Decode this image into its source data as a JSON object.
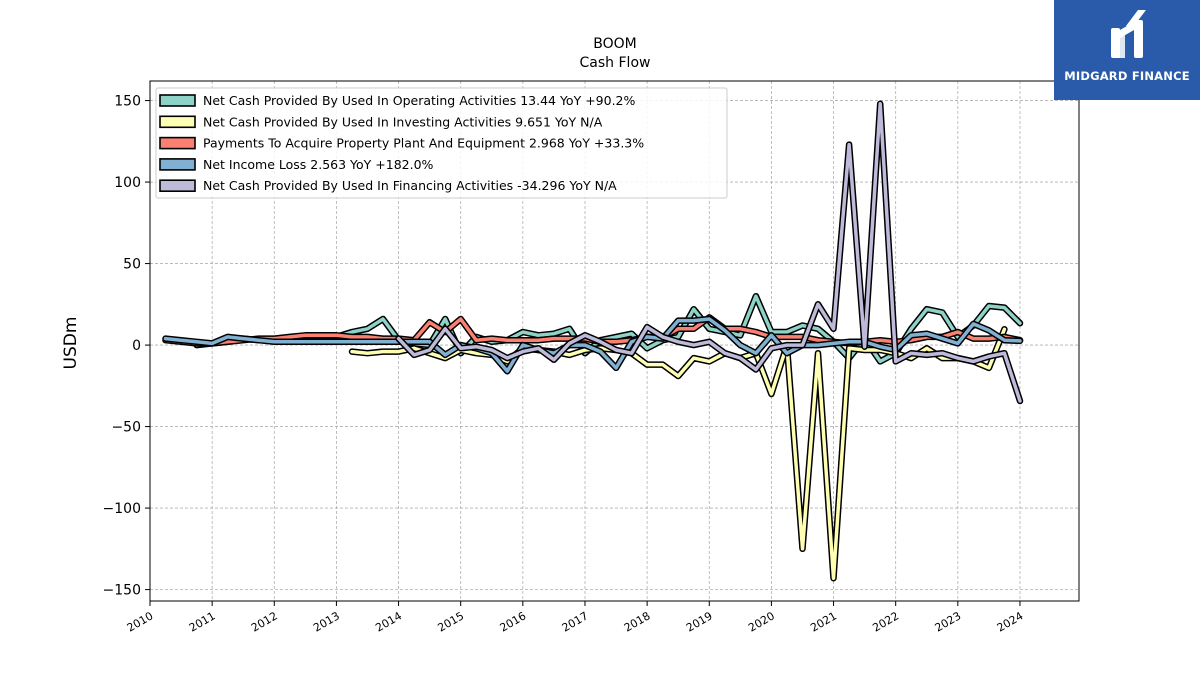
{
  "brand": {
    "name": "MIDGARD FINANCE",
    "bg_color": "#2a5bab"
  },
  "chart_data": {
    "type": "line",
    "title": "BOOM",
    "subtitle": "Cash Flow",
    "ylabel": "USDm",
    "xlabel": "",
    "xlim": [
      2010.0,
      2024.95
    ],
    "ylim": [
      -157,
      162
    ],
    "xticks": [
      2010,
      2011,
      2012,
      2013,
      2014,
      2015,
      2016,
      2017,
      2018,
      2019,
      2020,
      2021,
      2022,
      2023,
      2024
    ],
    "yticks": [
      -150,
      -100,
      -50,
      0,
      50,
      100,
      150
    ],
    "ytick_labels": [
      "−150",
      "−100",
      "−50",
      "0",
      "50",
      "100",
      "150"
    ],
    "grid": true,
    "legend_position": "top-left",
    "series": [
      {
        "name": "Net Cash Provided By Used In Operating Activities",
        "legend": "Net Cash Provided By Used In Operating Activities  13.44 YoY +90.2%",
        "color": "#8dd3c7",
        "points": [
          [
            2010.75,
            0
          ],
          [
            2011.0,
            1
          ],
          [
            2011.25,
            2
          ],
          [
            2011.5,
            4
          ],
          [
            2011.75,
            3
          ],
          [
            2012.0,
            3
          ],
          [
            2012.25,
            4
          ],
          [
            2012.5,
            5
          ],
          [
            2012.75,
            5
          ],
          [
            2013.0,
            5
          ],
          [
            2013.25,
            8
          ],
          [
            2013.5,
            10
          ],
          [
            2013.75,
            16
          ],
          [
            2014.0,
            3
          ],
          [
            2014.25,
            1
          ],
          [
            2014.5,
            0
          ],
          [
            2014.75,
            16
          ],
          [
            2015.0,
            -5
          ],
          [
            2015.25,
            5
          ],
          [
            2015.5,
            2
          ],
          [
            2015.75,
            3
          ],
          [
            2016.0,
            8
          ],
          [
            2016.25,
            6
          ],
          [
            2016.5,
            7
          ],
          [
            2016.75,
            10
          ],
          [
            2017.0,
            -5
          ],
          [
            2017.25,
            3
          ],
          [
            2017.5,
            5
          ],
          [
            2017.75,
            7
          ],
          [
            2018.0,
            -2
          ],
          [
            2018.25,
            3
          ],
          [
            2018.5,
            5
          ],
          [
            2018.75,
            22
          ],
          [
            2019.0,
            10
          ],
          [
            2019.25,
            8
          ],
          [
            2019.5,
            6
          ],
          [
            2019.75,
            30
          ],
          [
            2020.0,
            8
          ],
          [
            2020.25,
            8
          ],
          [
            2020.5,
            12
          ],
          [
            2020.75,
            10
          ],
          [
            2021.0,
            2
          ],
          [
            2021.25,
            -8
          ],
          [
            2021.5,
            4
          ],
          [
            2021.75,
            -10
          ],
          [
            2022.0,
            -5
          ],
          [
            2022.25,
            10
          ],
          [
            2022.5,
            22
          ],
          [
            2022.75,
            20
          ],
          [
            2023.0,
            5
          ],
          [
            2023.25,
            12
          ],
          [
            2023.5,
            24
          ],
          [
            2023.75,
            23
          ],
          [
            2024.0,
            13.44
          ]
        ]
      },
      {
        "name": "Net Cash Provided By Used In Investing Activities",
        "legend": "Net Cash Provided By Used In Investing Activities  9.651 YoY N/A",
        "color": "#ffffb3",
        "points": [
          [
            2013.25,
            -4
          ],
          [
            2013.5,
            -5
          ],
          [
            2013.75,
            -4
          ],
          [
            2014.0,
            -4
          ],
          [
            2014.25,
            -2
          ],
          [
            2014.5,
            -5
          ],
          [
            2014.75,
            -8
          ],
          [
            2015.0,
            -3
          ],
          [
            2015.25,
            -5
          ],
          [
            2015.5,
            -6
          ],
          [
            2015.75,
            -10
          ],
          [
            2016.0,
            -2
          ],
          [
            2016.25,
            -3
          ],
          [
            2016.5,
            -4
          ],
          [
            2016.75,
            -6
          ],
          [
            2017.0,
            -3
          ],
          [
            2017.25,
            -2
          ],
          [
            2017.5,
            -3
          ],
          [
            2017.75,
            -5
          ],
          [
            2018.0,
            -12
          ],
          [
            2018.25,
            -12
          ],
          [
            2018.5,
            -19
          ],
          [
            2018.75,
            -8
          ],
          [
            2019.0,
            -10
          ],
          [
            2019.25,
            -5
          ],
          [
            2019.5,
            -8
          ],
          [
            2019.75,
            -5
          ],
          [
            2020.0,
            -30
          ],
          [
            2020.25,
            0
          ],
          [
            2020.5,
            -125
          ],
          [
            2020.75,
            -5
          ],
          [
            2021.0,
            -143
          ],
          [
            2021.25,
            -2
          ],
          [
            2021.5,
            -3
          ],
          [
            2021.75,
            -3
          ],
          [
            2022.0,
            -5
          ],
          [
            2022.25,
            -8
          ],
          [
            2022.5,
            -2
          ],
          [
            2022.75,
            -8
          ],
          [
            2023.0,
            -8
          ],
          [
            2023.25,
            -10
          ],
          [
            2023.5,
            -14
          ],
          [
            2023.75,
            9.651
          ]
        ]
      },
      {
        "name": "Payments To Acquire Property Plant And Equipment",
        "legend": "Payments To Acquire Property Plant And Equipment  2.968 YoY +33.3%",
        "color": "#fb8072",
        "points": [
          [
            2010.25,
            3
          ],
          [
            2010.5,
            2
          ],
          [
            2010.75,
            1
          ],
          [
            2011.0,
            1
          ],
          [
            2011.25,
            2
          ],
          [
            2011.5,
            3
          ],
          [
            2011.75,
            4
          ],
          [
            2012.0,
            4
          ],
          [
            2012.25,
            5
          ],
          [
            2012.5,
            6
          ],
          [
            2012.75,
            6
          ],
          [
            2013.0,
            6
          ],
          [
            2013.25,
            5
          ],
          [
            2013.5,
            5
          ],
          [
            2013.75,
            4
          ],
          [
            2014.0,
            4
          ],
          [
            2014.25,
            3
          ],
          [
            2014.5,
            14
          ],
          [
            2014.75,
            8
          ],
          [
            2015.0,
            16
          ],
          [
            2015.25,
            3
          ],
          [
            2015.5,
            4
          ],
          [
            2015.75,
            3
          ],
          [
            2016.0,
            3
          ],
          [
            2016.25,
            3
          ],
          [
            2016.5,
            4
          ],
          [
            2016.75,
            4
          ],
          [
            2017.0,
            4
          ],
          [
            2017.25,
            2
          ],
          [
            2017.5,
            2
          ],
          [
            2017.75,
            3
          ],
          [
            2018.0,
            5
          ],
          [
            2018.25,
            5
          ],
          [
            2018.5,
            10
          ],
          [
            2018.75,
            10
          ],
          [
            2019.0,
            17
          ],
          [
            2019.25,
            10
          ],
          [
            2019.5,
            10
          ],
          [
            2019.75,
            8
          ],
          [
            2020.0,
            5
          ],
          [
            2020.25,
            5
          ],
          [
            2020.5,
            5
          ],
          [
            2020.75,
            3
          ],
          [
            2021.0,
            2
          ],
          [
            2021.25,
            1
          ],
          [
            2021.5,
            2
          ],
          [
            2021.75,
            3
          ],
          [
            2022.0,
            2
          ],
          [
            2022.25,
            3
          ],
          [
            2022.5,
            5
          ],
          [
            2022.75,
            5
          ],
          [
            2023.0,
            8
          ],
          [
            2023.25,
            4
          ],
          [
            2023.5,
            4
          ],
          [
            2023.75,
            5
          ],
          [
            2024.0,
            2.968
          ]
        ]
      },
      {
        "name": "Net Income Loss",
        "legend": "Net Income Loss  2.563 YoY +182.0%",
        "color": "#80b1d3",
        "points": [
          [
            2010.25,
            4
          ],
          [
            2010.5,
            3
          ],
          [
            2010.75,
            2
          ],
          [
            2011.0,
            1
          ],
          [
            2011.25,
            5
          ],
          [
            2011.5,
            4
          ],
          [
            2011.75,
            3
          ],
          [
            2012.0,
            2
          ],
          [
            2012.25,
            2
          ],
          [
            2012.5,
            2
          ],
          [
            2012.75,
            2
          ],
          [
            2013.0,
            2
          ],
          [
            2013.25,
            2
          ],
          [
            2013.5,
            2
          ],
          [
            2013.75,
            2
          ],
          [
            2014.0,
            2
          ],
          [
            2014.25,
            2
          ],
          [
            2014.5,
            2
          ],
          [
            2014.75,
            -6
          ],
          [
            2015.0,
            0
          ],
          [
            2015.25,
            -2
          ],
          [
            2015.5,
            -5
          ],
          [
            2015.75,
            -16
          ],
          [
            2016.0,
            0
          ],
          [
            2016.25,
            -3
          ],
          [
            2016.5,
            -5
          ],
          [
            2016.75,
            0
          ],
          [
            2017.0,
            0
          ],
          [
            2017.25,
            -4
          ],
          [
            2017.5,
            -14
          ],
          [
            2017.75,
            2
          ],
          [
            2018.0,
            5
          ],
          [
            2018.25,
            4
          ],
          [
            2018.5,
            15
          ],
          [
            2018.75,
            15
          ],
          [
            2019.0,
            16
          ],
          [
            2019.25,
            9
          ],
          [
            2019.5,
            0
          ],
          [
            2019.75,
            -5
          ],
          [
            2020.0,
            6
          ],
          [
            2020.25,
            -5
          ],
          [
            2020.5,
            0
          ],
          [
            2020.75,
            0
          ],
          [
            2021.0,
            1
          ],
          [
            2021.25,
            2
          ],
          [
            2021.5,
            2
          ],
          [
            2021.75,
            -1
          ],
          [
            2022.0,
            -3
          ],
          [
            2022.25,
            6
          ],
          [
            2022.5,
            7
          ],
          [
            2022.75,
            4
          ],
          [
            2023.0,
            1
          ],
          [
            2023.25,
            13
          ],
          [
            2023.5,
            9
          ],
          [
            2023.75,
            3
          ],
          [
            2024.0,
            2.563
          ]
        ]
      },
      {
        "name": "Net Cash Provided By Used In Financing Activities",
        "legend": "Net Cash Provided By Used In Financing Activities  -34.296 YoY N/A",
        "color": "#bebada",
        "points": [
          [
            2014.0,
            4
          ],
          [
            2014.25,
            -6
          ],
          [
            2014.5,
            -3
          ],
          [
            2014.75,
            10
          ],
          [
            2015.0,
            -2
          ],
          [
            2015.25,
            -1
          ],
          [
            2015.5,
            -3
          ],
          [
            2015.75,
            -8
          ],
          [
            2016.0,
            -4
          ],
          [
            2016.25,
            -2
          ],
          [
            2016.5,
            -9
          ],
          [
            2016.75,
            1
          ],
          [
            2017.0,
            6
          ],
          [
            2017.25,
            2
          ],
          [
            2017.5,
            -3
          ],
          [
            2017.75,
            -5
          ],
          [
            2018.0,
            11
          ],
          [
            2018.25,
            5
          ],
          [
            2018.5,
            2
          ],
          [
            2018.75,
            0
          ],
          [
            2019.0,
            2
          ],
          [
            2019.25,
            -5
          ],
          [
            2019.5,
            -8
          ],
          [
            2019.75,
            -15
          ],
          [
            2020.0,
            -2
          ],
          [
            2020.25,
            0
          ],
          [
            2020.5,
            0
          ],
          [
            2020.75,
            25
          ],
          [
            2021.0,
            10
          ],
          [
            2021.25,
            123
          ],
          [
            2021.5,
            -1
          ],
          [
            2021.75,
            148
          ],
          [
            2022.0,
            -10
          ],
          [
            2022.25,
            -5
          ],
          [
            2022.5,
            -6
          ],
          [
            2022.75,
            -5
          ],
          [
            2023.0,
            -8
          ],
          [
            2023.25,
            -10
          ],
          [
            2023.5,
            -7
          ],
          [
            2023.75,
            -5
          ],
          [
            2024.0,
            -34.296
          ]
        ]
      }
    ]
  }
}
